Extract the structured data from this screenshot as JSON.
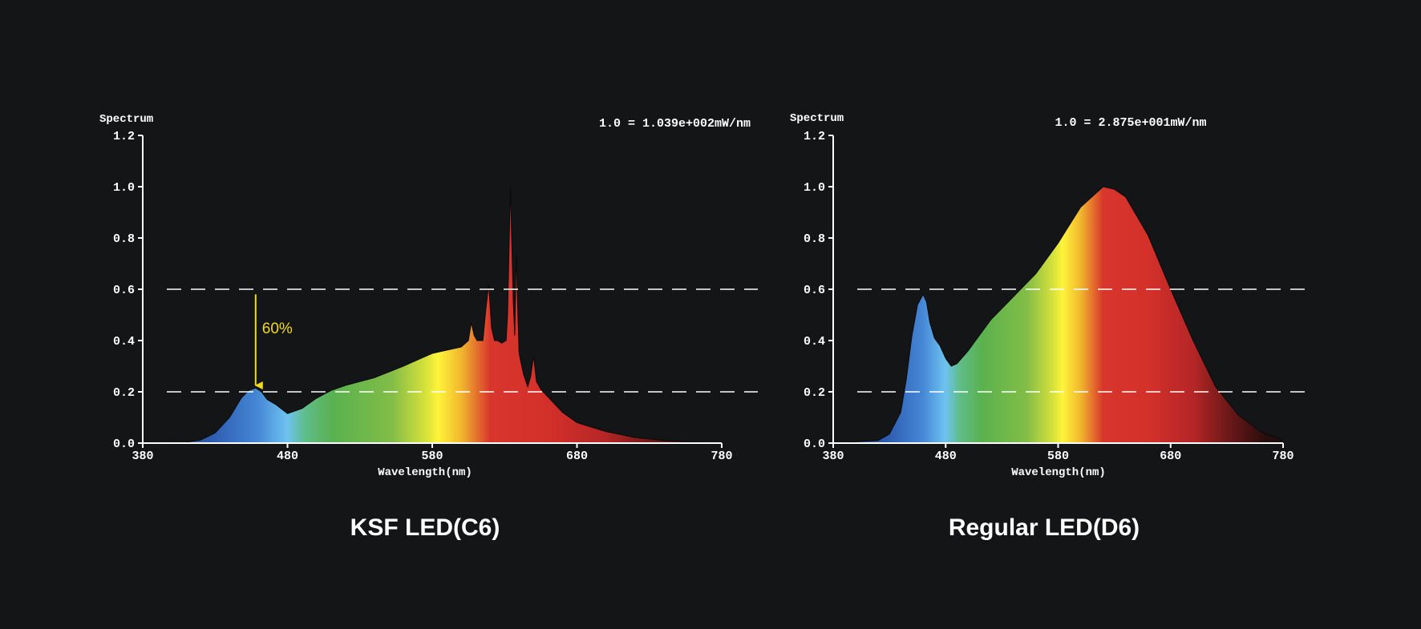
{
  "chart_data": [
    {
      "id": "ksf",
      "type": "area",
      "title": "KSF LED(C6)",
      "ylabel": "Spectrum",
      "xlabel": "Wavelength(nm)",
      "note": "1.0 = 1.039e+002mW/nm",
      "xlim": [
        380,
        780
      ],
      "ylim": [
        0,
        1.2
      ],
      "x_ticks": [
        "380",
        "480",
        "580",
        "680",
        "780"
      ],
      "y_ticks": [
        "0.0",
        "0.2",
        "0.4",
        "0.6",
        "0.8",
        "1.0",
        "1.2"
      ],
      "reference_lines": [
        0.2,
        0.6
      ],
      "annotation": {
        "label": "60%",
        "x": 458,
        "from_y": 0.58,
        "to_y": 0.225
      },
      "x": [
        380,
        410,
        420,
        430,
        440,
        448,
        453,
        458,
        462,
        466,
        472,
        480,
        490,
        500,
        510,
        520,
        540,
        560,
        580,
        600,
        605,
        607,
        609,
        611,
        615,
        617,
        619,
        621,
        623,
        625,
        628,
        631,
        632,
        634,
        636,
        637,
        638,
        640,
        643,
        646,
        648,
        650,
        652,
        655,
        660,
        670,
        680,
        700,
        720,
        740,
        760,
        780
      ],
      "y": [
        0,
        0.003,
        0.012,
        0.04,
        0.1,
        0.175,
        0.205,
        0.215,
        0.2,
        0.17,
        0.15,
        0.115,
        0.135,
        0.175,
        0.205,
        0.225,
        0.255,
        0.3,
        0.35,
        0.375,
        0.4,
        0.47,
        0.42,
        0.4,
        0.4,
        0.52,
        0.62,
        0.45,
        0.4,
        0.4,
        0.39,
        0.4,
        0.5,
        1.0,
        0.55,
        0.42,
        0.74,
        0.35,
        0.27,
        0.22,
        0.26,
        0.34,
        0.24,
        0.21,
        0.18,
        0.12,
        0.08,
        0.045,
        0.022,
        0.01,
        0.004,
        0
      ]
    },
    {
      "id": "regular",
      "type": "area",
      "title": "Regular LED(D6)",
      "ylabel": "Spectrum",
      "xlabel": "Wavelength(nm)",
      "note": "1.0 = 2.875e+001mW/nm",
      "xlim": [
        380,
        780
      ],
      "ylim": [
        0,
        1.2
      ],
      "x_ticks": [
        "380",
        "480",
        "580",
        "680",
        "780"
      ],
      "y_ticks": [
        "0.0",
        "0.2",
        "0.4",
        "0.6",
        "0.8",
        "1.0",
        "1.2"
      ],
      "reference_lines": [
        0.2,
        0.6
      ],
      "x": [
        380,
        420,
        430,
        440,
        445,
        450,
        455,
        460,
        463,
        466,
        470,
        475,
        480,
        485,
        490,
        500,
        510,
        520,
        540,
        560,
        580,
        600,
        620,
        630,
        640,
        660,
        680,
        700,
        720,
        740,
        760,
        780
      ],
      "y": [
        0,
        0.01,
        0.035,
        0.12,
        0.25,
        0.42,
        0.54,
        0.58,
        0.55,
        0.47,
        0.41,
        0.38,
        0.33,
        0.3,
        0.31,
        0.36,
        0.42,
        0.48,
        0.57,
        0.66,
        0.78,
        0.92,
        1.0,
        0.99,
        0.96,
        0.81,
        0.6,
        0.4,
        0.22,
        0.11,
        0.045,
        0.01
      ]
    }
  ]
}
